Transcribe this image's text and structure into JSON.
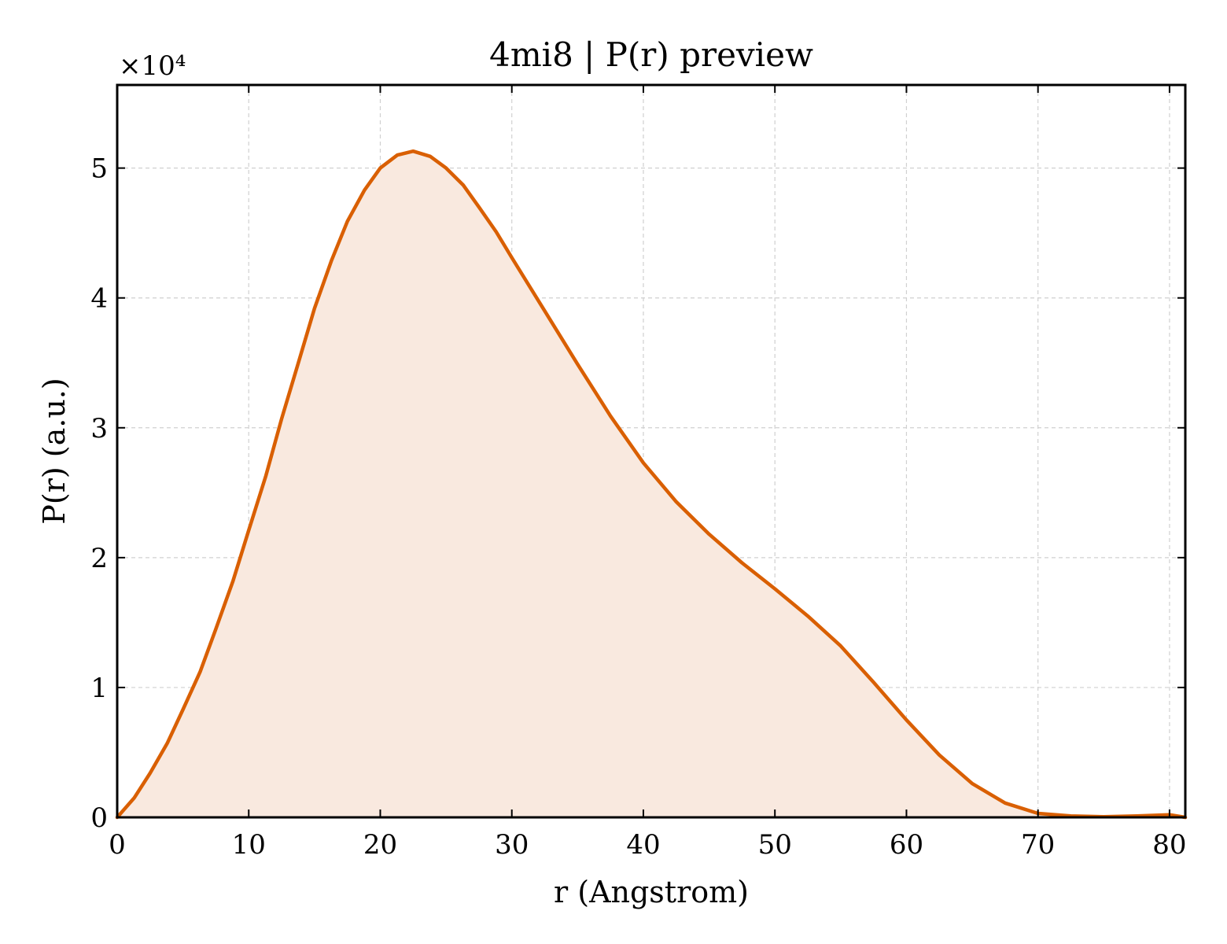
{
  "chart_data": {
    "type": "area",
    "title": "4mi8 | P(r) preview",
    "xlabel": "r (Angstrom)",
    "ylabel": "P(r) (a.u.)",
    "y_offset_label": "×10⁴",
    "y_scale": 10000,
    "xlim": [
      0,
      81.2
    ],
    "ylim": [
      0,
      56400
    ],
    "x_ticks": [
      0,
      10,
      20,
      30,
      40,
      50,
      60,
      70,
      80
    ],
    "y_ticks": [
      0,
      10000,
      20000,
      30000,
      40000,
      50000
    ],
    "y_tick_labels": [
      "0",
      "1",
      "2",
      "3",
      "4",
      "5"
    ],
    "grid": true,
    "series": [
      {
        "color": "#d95f02",
        "fill_color": "#f9e9df",
        "x": [
          0,
          1.3,
          2.5,
          3.8,
          5.0,
          6.3,
          7.5,
          8.8,
          10.0,
          11.3,
          12.5,
          13.8,
          15.0,
          16.3,
          17.5,
          18.8,
          20.0,
          21.3,
          22.5,
          23.8,
          25.0,
          26.3,
          27.5,
          28.8,
          30.0,
          32.5,
          35.0,
          37.5,
          40.0,
          42.5,
          45.0,
          47.5,
          50.0,
          52.5,
          55.0,
          57.5,
          60.0,
          62.5,
          65.0,
          67.5,
          70.0,
          72.5,
          75.0,
          77.5,
          80.0,
          81.2
        ],
        "y": [
          0,
          1500,
          3400,
          5700,
          8300,
          11200,
          14500,
          18200,
          22100,
          26300,
          30700,
          35100,
          39200,
          42900,
          45900,
          48300,
          50000,
          51000,
          51300,
          50900,
          50000,
          48700,
          47000,
          45100,
          43100,
          39000,
          34900,
          30900,
          27300,
          24300,
          21800,
          19600,
          17600,
          15500,
          13200,
          10400,
          7500,
          4800,
          2600,
          1100,
          300,
          100,
          50,
          100,
          200,
          0
        ]
      }
    ]
  }
}
